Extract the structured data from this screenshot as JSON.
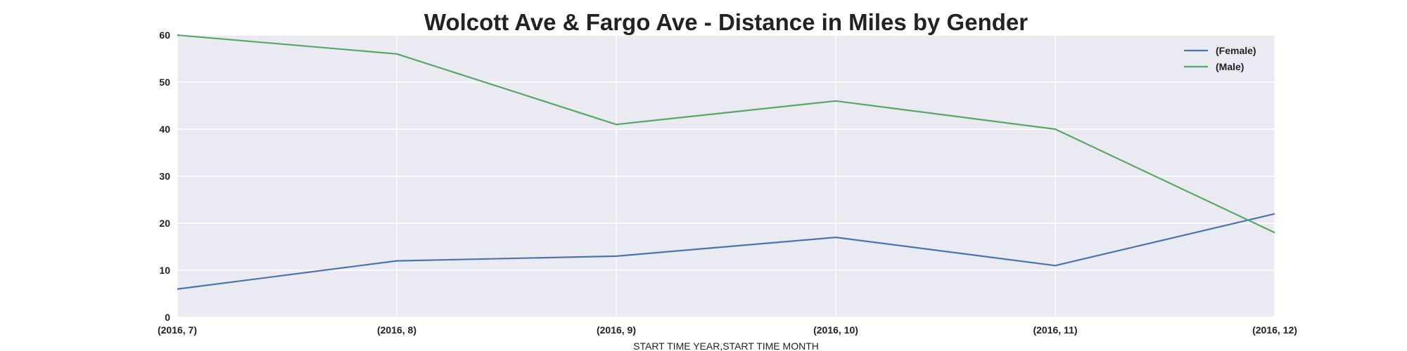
{
  "chart_data": {
    "type": "line",
    "title": "Wolcott Ave & Fargo Ave - Distance in Miles by Gender",
    "xlabel": "START TIME YEAR,START TIME MONTH",
    "ylabel": "",
    "categories": [
      "(2016, 7)",
      "(2016, 8)",
      "(2016, 9)",
      "(2016, 10)",
      "(2016, 11)",
      "(2016, 12)"
    ],
    "ylim": [
      0,
      60
    ],
    "yticks": [
      "0",
      "10",
      "20",
      "30",
      "40",
      "50",
      "60"
    ],
    "grid": true,
    "legend_position": "top-right",
    "series": [
      {
        "name": "(Female)",
        "color": "#4c72b0",
        "values": [
          6,
          12,
          13,
          17,
          11,
          22
        ]
      },
      {
        "name": "(Male)",
        "color": "#55a868",
        "values": [
          60,
          56,
          41,
          46,
          40,
          18
        ]
      }
    ]
  },
  "style": {
    "plot_background": "#eaeaf2",
    "grid_color": "#ffffff"
  }
}
